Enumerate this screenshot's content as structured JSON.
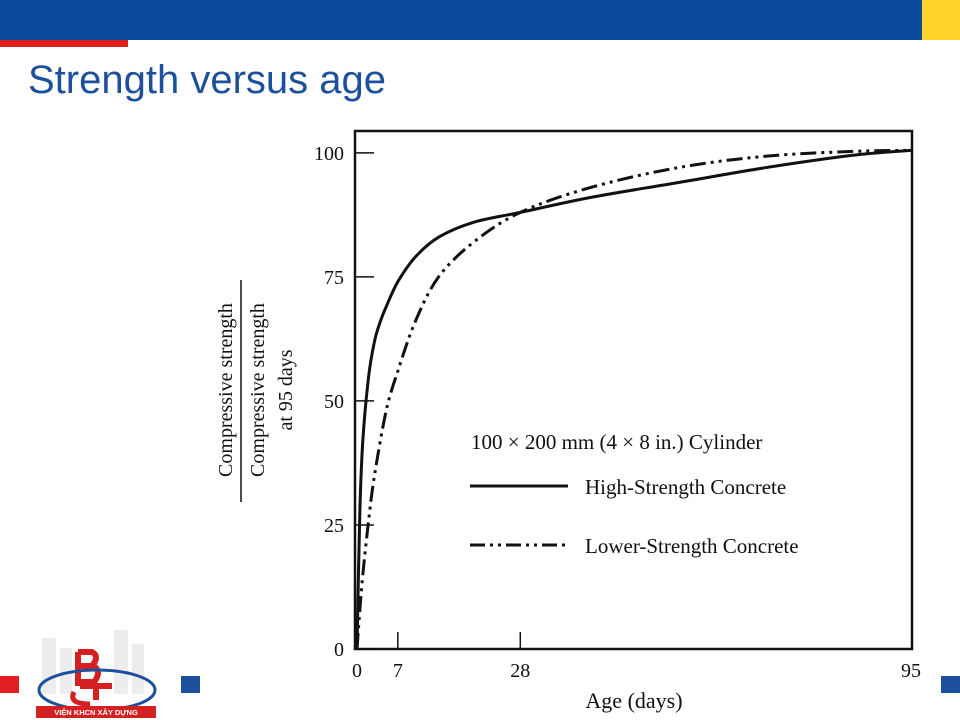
{
  "slide": {
    "title": "Strength versus age"
  },
  "logo": {
    "text": "VIỆN KHCN XÂY DỰNG"
  },
  "colors": {
    "header_blue": "#0b4a9c",
    "header_yellow": "#ffd42a",
    "accent_red": "#e02020",
    "title_blue": "#1c4f9c"
  },
  "chart_data": {
    "type": "line",
    "ylabel_main": "Compressive strength",
    "ylabel_sub": "Compressive strength",
    "ylabel_sub2": "at 95 days",
    "xlabel": "Age (days)",
    "xlim": [
      0,
      95
    ],
    "ylim": [
      0,
      104
    ],
    "x_ticks": [
      0,
      7,
      28,
      95
    ],
    "y_ticks": [
      0,
      25,
      50,
      75,
      100
    ],
    "grid": false,
    "legend": {
      "title": "100 × 200 mm (4 × 8 in.) Cylinder",
      "placement": "lower-right"
    },
    "series": [
      {
        "name": "High-Strength Concrete",
        "style": "solid",
        "x": [
          0,
          0.5,
          1,
          2,
          3,
          4,
          5,
          7,
          10,
          14,
          20,
          28,
          40,
          55,
          70,
          85,
          95
        ],
        "y": [
          0,
          28,
          42,
          55,
          62,
          66,
          69,
          74,
          79,
          83,
          86,
          88,
          91,
          94,
          97,
          99.5,
          100.5
        ]
      },
      {
        "name": "Lower-Strength Concrete",
        "style": "dash-dot-dot",
        "x": [
          0,
          0.5,
          1,
          2,
          3,
          5,
          7,
          10,
          14,
          20,
          28,
          40,
          55,
          70,
          85,
          95
        ],
        "y": [
          0,
          8,
          15,
          26,
          35,
          48,
          56,
          66,
          75,
          82,
          88,
          93,
          97,
          99.3,
          100.3,
          100.5
        ]
      }
    ]
  }
}
